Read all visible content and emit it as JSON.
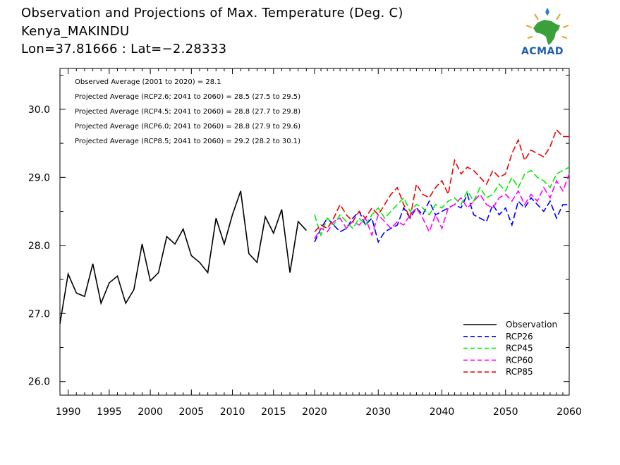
{
  "header": {
    "title": "Observation and Projections of Max. Temperature (Deg. C)",
    "station": "Kenya_MAKINDU",
    "coords": "Lon=37.81666 : Lat=−2.28333"
  },
  "logo": {
    "text": "ACMAD",
    "icon": "africa-map-logo-icon"
  },
  "chart_data": {
    "type": "line",
    "title": "Observation and Projections of Max. Temperature (Deg. C)",
    "xlabel": "",
    "ylabel": "",
    "xlim": [
      1989,
      2060
    ],
    "ylim": [
      25.8,
      30.6
    ],
    "x_ticks": [
      1990,
      1995,
      2000,
      2005,
      2010,
      2015,
      2020,
      2030,
      2040,
      2050,
      2060
    ],
    "y_ticks": [
      26.0,
      27.0,
      28.0,
      29.0,
      30.0
    ],
    "y_tick_labels": [
      "26.0",
      "27.0",
      "28.0",
      "29.0",
      "30.0"
    ],
    "grid": false,
    "legend_position": "bottom-right",
    "annotations": [
      "Observed Average (2001 to 2020) = 28.1",
      "Projected Average (RCP2.6; 2041 to 2060) = 28.5 (27.5 to 29.5)",
      "Projected Average (RCP4.5; 2041 to 2060) = 28.8 (27.7 to 29.8)",
      "Projected Average (RCP6.0; 2041 to 2060) = 28.8 (27.9 to 29.6)",
      "Projected Average (RCP8.5; 2041 to 2060) = 29.2 (28.2 to 30.1)"
    ],
    "series": [
      {
        "name": "Observation",
        "color": "#000000",
        "dash": "solid",
        "x": [
          1989,
          1990,
          1991,
          1992,
          1993,
          1994,
          1995,
          1996,
          1997,
          1998,
          1999,
          2000,
          2001,
          2002,
          2003,
          2004,
          2005,
          2006,
          2007,
          2008,
          2009,
          2010,
          2011,
          2012,
          2013,
          2014,
          2015,
          2016,
          2017,
          2018,
          2019
        ],
        "y": [
          26.85,
          27.58,
          27.3,
          27.25,
          27.73,
          27.15,
          27.45,
          27.55,
          27.15,
          27.35,
          28.02,
          27.48,
          27.6,
          28.13,
          28.02,
          28.24,
          27.85,
          27.75,
          27.6,
          28.4,
          28.02,
          28.45,
          28.8,
          27.88,
          27.75,
          28.42,
          28.18,
          28.53,
          27.6,
          28.35,
          28.22
        ]
      },
      {
        "name": "RCP26",
        "color": "#0000ff",
        "dash": "dashed",
        "x": [
          2020,
          2021,
          2022,
          2023,
          2024,
          2025,
          2026,
          2027,
          2028,
          2029,
          2030,
          2031,
          2032,
          2033,
          2034,
          2035,
          2036,
          2037,
          2038,
          2039,
          2040,
          2041,
          2042,
          2043,
          2044,
          2045,
          2046,
          2047,
          2048,
          2049,
          2050,
          2051,
          2052,
          2053,
          2054,
          2055,
          2056,
          2057,
          2058,
          2059,
          2060
        ],
        "y": [
          28.05,
          28.25,
          28.4,
          28.3,
          28.2,
          28.25,
          28.4,
          28.5,
          28.3,
          28.4,
          28.05,
          28.2,
          28.25,
          28.3,
          28.55,
          28.4,
          28.55,
          28.45,
          28.65,
          28.45,
          28.5,
          28.55,
          28.6,
          28.55,
          28.75,
          28.45,
          28.4,
          28.35,
          28.6,
          28.45,
          28.55,
          28.3,
          28.65,
          28.55,
          28.7,
          28.6,
          28.5,
          28.65,
          28.4,
          28.6,
          28.6
        ]
      },
      {
        "name": "RCP45",
        "color": "#00ee00",
        "dash": "dashed",
        "x": [
          2020,
          2021,
          2022,
          2023,
          2024,
          2025,
          2026,
          2027,
          2028,
          2029,
          2030,
          2031,
          2032,
          2033,
          2034,
          2035,
          2036,
          2037,
          2038,
          2039,
          2040,
          2041,
          2042,
          2043,
          2044,
          2045,
          2046,
          2047,
          2048,
          2049,
          2050,
          2051,
          2052,
          2053,
          2054,
          2055,
          2056,
          2057,
          2058,
          2059,
          2060
        ],
        "y": [
          28.45,
          28.15,
          28.4,
          28.3,
          28.45,
          28.35,
          28.25,
          28.4,
          28.3,
          28.45,
          28.55,
          28.4,
          28.5,
          28.6,
          28.7,
          28.5,
          28.6,
          28.55,
          28.45,
          28.6,
          28.55,
          28.65,
          28.7,
          28.6,
          28.8,
          28.65,
          28.85,
          28.7,
          28.75,
          28.9,
          28.8,
          29.0,
          28.85,
          29.05,
          29.1,
          29.0,
          28.95,
          28.85,
          29.05,
          29.1,
          29.15
        ]
      },
      {
        "name": "RCP60",
        "color": "#ff00ff",
        "dash": "dashed",
        "x": [
          2020,
          2021,
          2022,
          2023,
          2024,
          2025,
          2026,
          2027,
          2028,
          2029,
          2030,
          2031,
          2032,
          2033,
          2034,
          2035,
          2036,
          2037,
          2038,
          2039,
          2040,
          2041,
          2042,
          2043,
          2044,
          2045,
          2046,
          2047,
          2048,
          2049,
          2050,
          2051,
          2052,
          2053,
          2054,
          2055,
          2056,
          2057,
          2058,
          2059,
          2060
        ],
        "y": [
          28.1,
          28.25,
          28.2,
          28.35,
          28.4,
          28.25,
          28.35,
          28.3,
          28.4,
          28.15,
          28.45,
          28.35,
          28.25,
          28.35,
          28.3,
          28.45,
          28.55,
          28.4,
          28.2,
          28.45,
          28.25,
          28.55,
          28.6,
          28.7,
          28.55,
          28.65,
          28.75,
          28.6,
          28.55,
          28.7,
          28.75,
          28.65,
          28.8,
          28.6,
          28.75,
          28.65,
          28.85,
          28.7,
          28.95,
          28.8,
          29.05
        ]
      },
      {
        "name": "RCP85",
        "color": "#ee0000",
        "dash": "dashed",
        "x": [
          2020,
          2021,
          2022,
          2023,
          2024,
          2025,
          2026,
          2027,
          2028,
          2029,
          2030,
          2031,
          2032,
          2033,
          2034,
          2035,
          2036,
          2037,
          2038,
          2039,
          2040,
          2041,
          2042,
          2043,
          2044,
          2045,
          2046,
          2047,
          2048,
          2049,
          2050,
          2051,
          2052,
          2053,
          2054,
          2055,
          2056,
          2057,
          2058,
          2059,
          2060
        ],
        "y": [
          28.2,
          28.3,
          28.25,
          28.4,
          28.6,
          28.45,
          28.35,
          28.5,
          28.4,
          28.55,
          28.45,
          28.6,
          28.75,
          28.85,
          28.6,
          28.4,
          28.9,
          28.75,
          28.7,
          28.85,
          28.95,
          28.75,
          29.25,
          29.05,
          29.15,
          29.1,
          29.0,
          28.9,
          29.1,
          29.0,
          29.05,
          29.35,
          29.55,
          29.25,
          29.4,
          29.35,
          29.3,
          29.45,
          29.7,
          29.6,
          29.6
        ]
      }
    ]
  }
}
